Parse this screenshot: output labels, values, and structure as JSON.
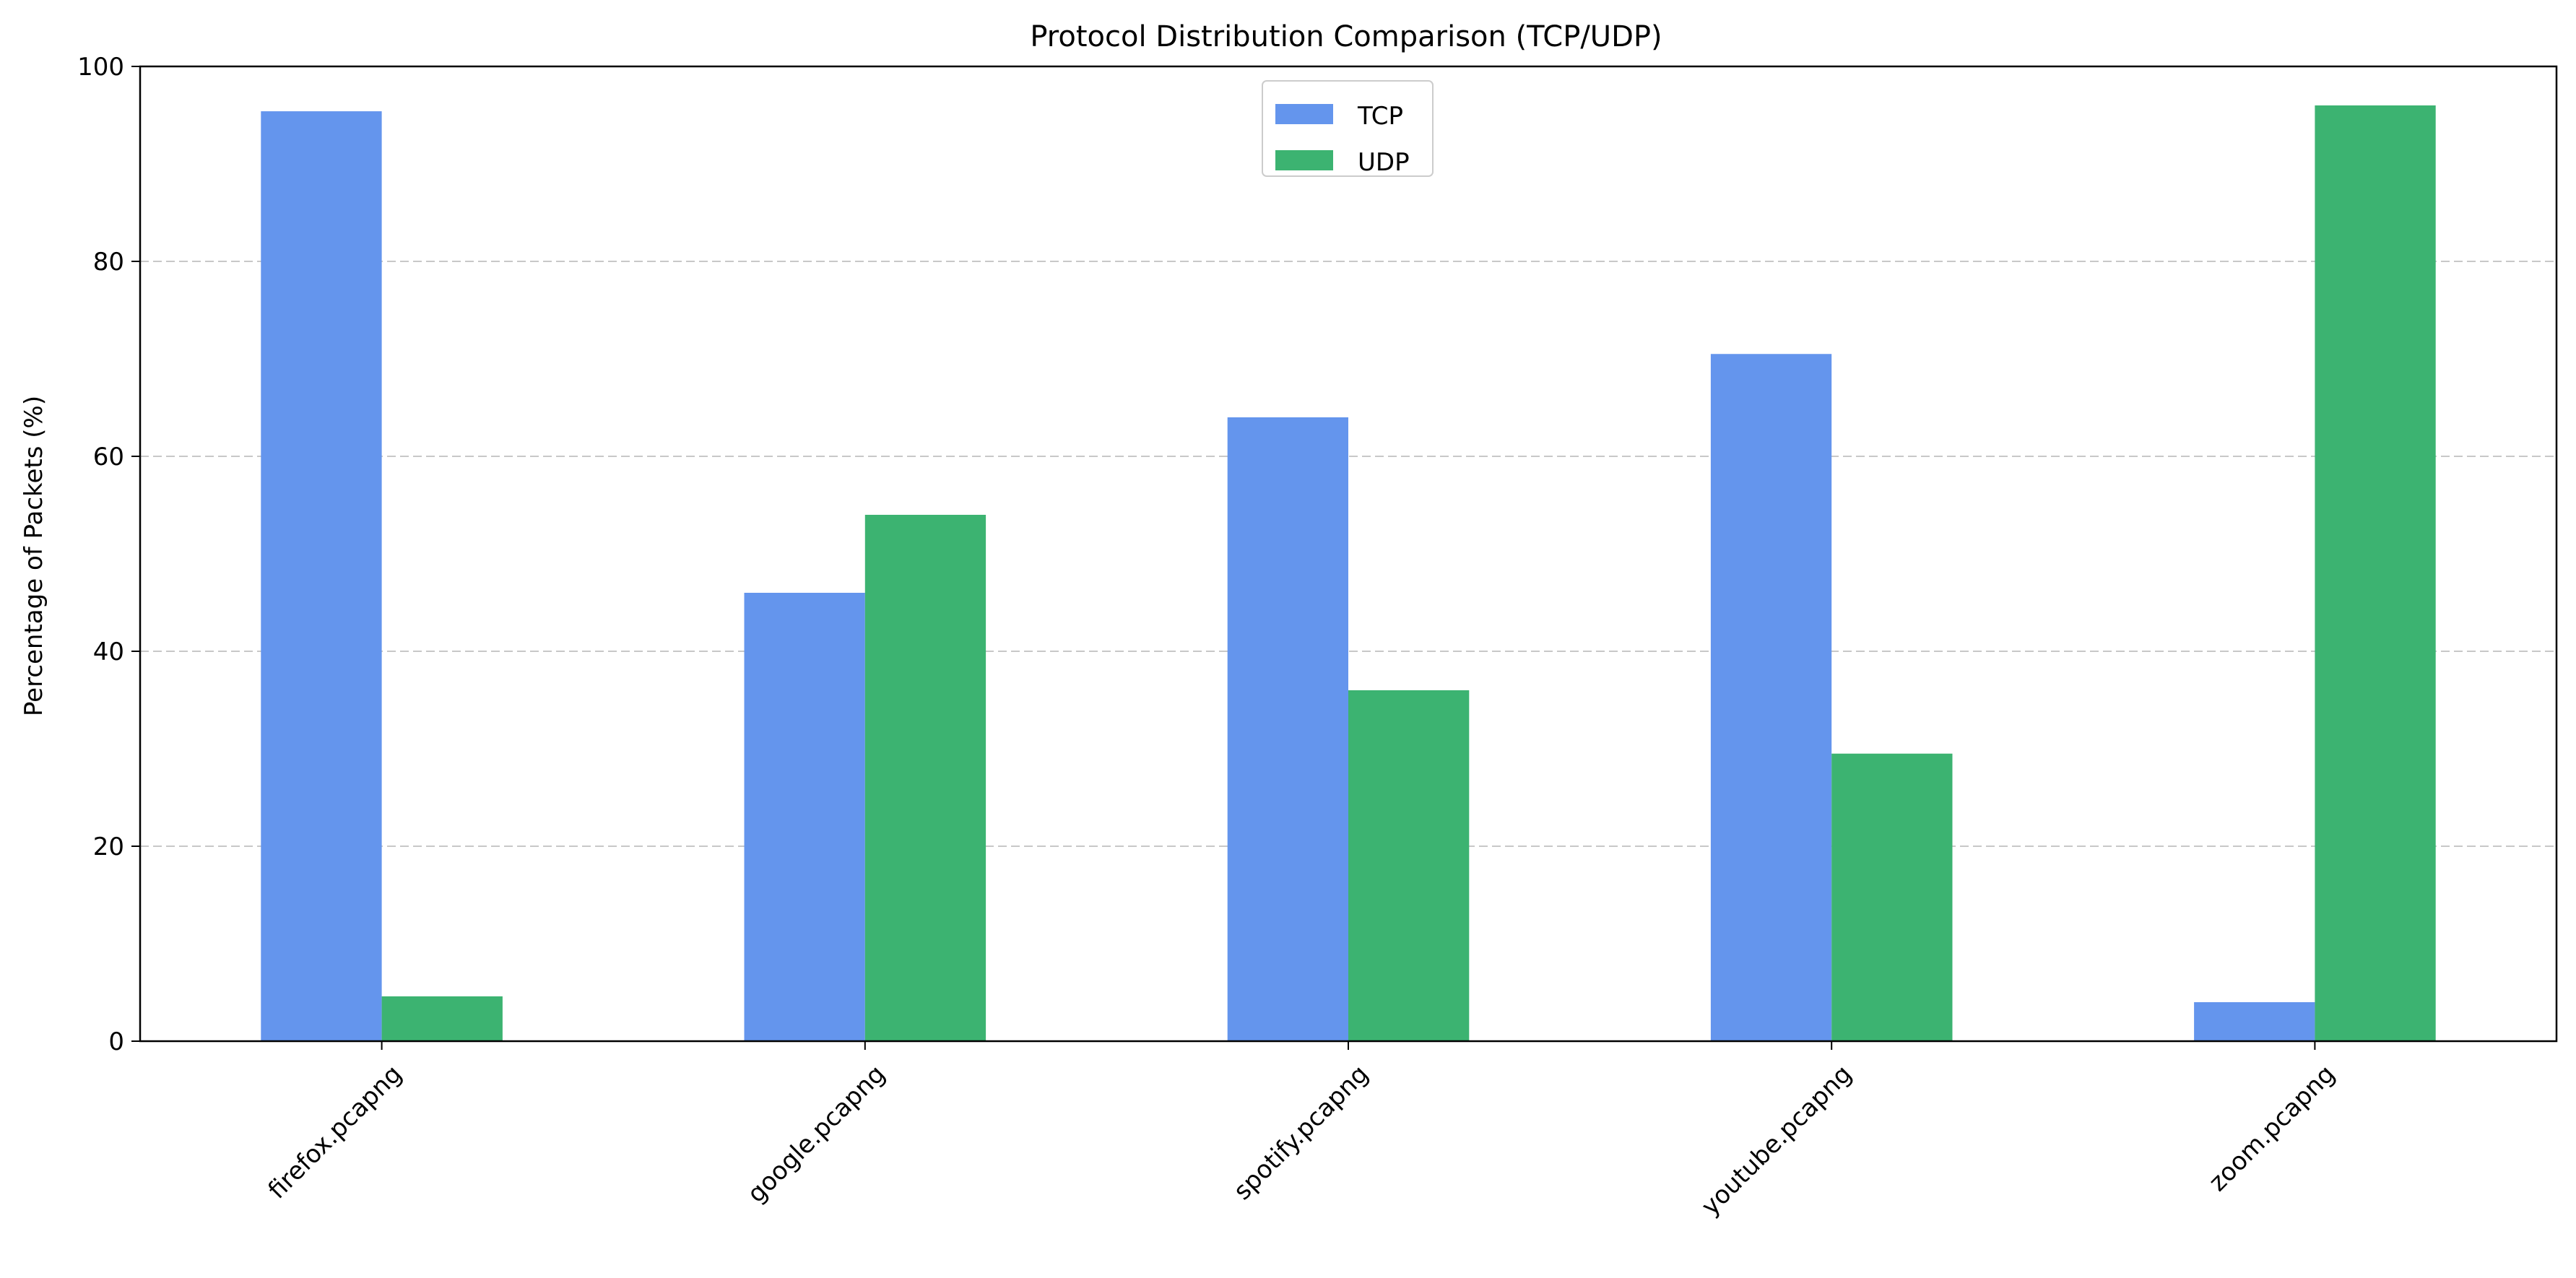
{
  "chart_data": {
    "type": "bar",
    "title": "Protocol Distribution Comparison (TCP/UDP)",
    "xlabel": "",
    "ylabel": "Percentage of Packets (%)",
    "categories": [
      "firefox.pcapng",
      "google.pcapng",
      "spotify.pcapng",
      "youtube.pcapng",
      "zoom.pcapng"
    ],
    "series": [
      {
        "name": "TCP",
        "color": "#6495ED",
        "values": [
          95.4,
          46.0,
          64.0,
          70.5,
          4.0
        ]
      },
      {
        "name": "UDP",
        "color": "#3CB371",
        "values": [
          4.6,
          54.0,
          36.0,
          29.5,
          96.0
        ]
      }
    ],
    "ylim": [
      0,
      100
    ],
    "yticks": [
      0,
      20,
      40,
      60,
      80,
      100
    ],
    "grid": "y-dashed",
    "legend_position": "top-center",
    "xtick_rotation": 45
  }
}
